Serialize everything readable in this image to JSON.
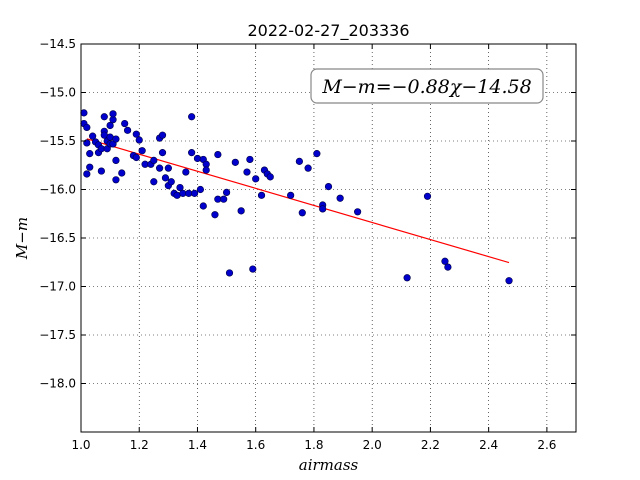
{
  "chart_data": {
    "type": "scatter",
    "title": "2022-02-27_203336",
    "xlabel": "airmass",
    "ylabel": "M−m",
    "xlim": [
      1.0,
      2.7
    ],
    "ylim": [
      -18.5,
      -14.5
    ],
    "y_inverted": true,
    "grid": true,
    "x_ticks": [
      1.0,
      1.2,
      1.4,
      1.6,
      1.8,
      2.0,
      2.2,
      2.4,
      2.6
    ],
    "x_tick_labels": [
      "1.0",
      "1.2",
      "1.4",
      "1.6",
      "1.8",
      "2.0",
      "2.2",
      "2.4",
      "2.6"
    ],
    "y_ticks": [
      -14.5,
      -15.0,
      -15.5,
      -16.0,
      -16.5,
      -17.0,
      -17.5,
      -18.0
    ],
    "y_tick_labels": [
      "−14.5",
      "−15.0",
      "−15.5",
      "−16.0",
      "−16.5",
      "−17.0",
      "−17.5",
      "−18.0"
    ],
    "annotation": "M−m=−0.88χ−14.58",
    "annotation_placement": "top-right",
    "fit": {
      "slope": -0.88,
      "intercept": -14.58,
      "x_range": [
        1.02,
        2.47
      ],
      "color": "#ff0000"
    },
    "point_color": "#0000cc",
    "points": [
      [
        1.01,
        -15.21
      ],
      [
        1.01,
        -15.32
      ],
      [
        1.02,
        -15.36
      ],
      [
        1.02,
        -15.52
      ],
      [
        1.02,
        -15.84
      ],
      [
        1.03,
        -15.63
      ],
      [
        1.03,
        -15.77
      ],
      [
        1.04,
        -15.45
      ],
      [
        1.05,
        -15.51
      ],
      [
        1.06,
        -15.54
      ],
      [
        1.06,
        -15.62
      ],
      [
        1.07,
        -15.58
      ],
      [
        1.07,
        -15.81
      ],
      [
        1.08,
        -15.4
      ],
      [
        1.08,
        -15.44
      ],
      [
        1.08,
        -15.25
      ],
      [
        1.09,
        -15.58
      ],
      [
        1.09,
        -15.5
      ],
      [
        1.1,
        -15.53
      ],
      [
        1.1,
        -15.34
      ],
      [
        1.1,
        -15.46
      ],
      [
        1.11,
        -15.28
      ],
      [
        1.11,
        -15.22
      ],
      [
        1.11,
        -15.53
      ],
      [
        1.12,
        -15.48
      ],
      [
        1.12,
        -15.7
      ],
      [
        1.12,
        -15.9
      ],
      [
        1.14,
        -15.83
      ],
      [
        1.15,
        -15.32
      ],
      [
        1.16,
        -15.39
      ],
      [
        1.18,
        -15.65
      ],
      [
        1.19,
        -15.67
      ],
      [
        1.19,
        -15.43
      ],
      [
        1.2,
        -15.49
      ],
      [
        1.21,
        -15.6
      ],
      [
        1.22,
        -15.74
      ],
      [
        1.24,
        -15.74
      ],
      [
        1.25,
        -15.92
      ],
      [
        1.25,
        -15.7
      ],
      [
        1.27,
        -15.78
      ],
      [
        1.27,
        -15.47
      ],
      [
        1.28,
        -15.44
      ],
      [
        1.28,
        -15.62
      ],
      [
        1.29,
        -15.88
      ],
      [
        1.3,
        -15.96
      ],
      [
        1.3,
        -15.78
      ],
      [
        1.31,
        -15.92
      ],
      [
        1.32,
        -16.04
      ],
      [
        1.33,
        -16.06
      ],
      [
        1.34,
        -15.98
      ],
      [
        1.35,
        -16.04
      ],
      [
        1.36,
        -15.82
      ],
      [
        1.37,
        -16.04
      ],
      [
        1.38,
        -15.25
      ],
      [
        1.38,
        -15.62
      ],
      [
        1.39,
        -16.04
      ],
      [
        1.4,
        -15.68
      ],
      [
        1.41,
        -16.0
      ],
      [
        1.42,
        -15.69
      ],
      [
        1.42,
        -16.17
      ],
      [
        1.43,
        -15.74
      ],
      [
        1.43,
        -15.8
      ],
      [
        1.46,
        -16.26
      ],
      [
        1.47,
        -16.1
      ],
      [
        1.47,
        -15.64
      ],
      [
        1.49,
        -16.1
      ],
      [
        1.5,
        -16.03
      ],
      [
        1.51,
        -16.86
      ],
      [
        1.53,
        -15.72
      ],
      [
        1.55,
        -16.22
      ],
      [
        1.57,
        -15.82
      ],
      [
        1.58,
        -15.69
      ],
      [
        1.59,
        -16.82
      ],
      [
        1.6,
        -15.89
      ],
      [
        1.62,
        -16.06
      ],
      [
        1.63,
        -15.8
      ],
      [
        1.64,
        -15.84
      ],
      [
        1.65,
        -15.87
      ],
      [
        1.72,
        -16.06
      ],
      [
        1.75,
        -15.71
      ],
      [
        1.76,
        -16.24
      ],
      [
        1.78,
        -15.78
      ],
      [
        1.81,
        -15.63
      ],
      [
        1.83,
        -16.16
      ],
      [
        1.83,
        -16.2
      ],
      [
        1.85,
        -15.97
      ],
      [
        1.89,
        -16.09
      ],
      [
        1.95,
        -16.23
      ],
      [
        2.12,
        -16.91
      ],
      [
        2.19,
        -16.07
      ],
      [
        2.25,
        -16.74
      ],
      [
        2.26,
        -16.8
      ],
      [
        2.47,
        -16.94
      ]
    ]
  }
}
